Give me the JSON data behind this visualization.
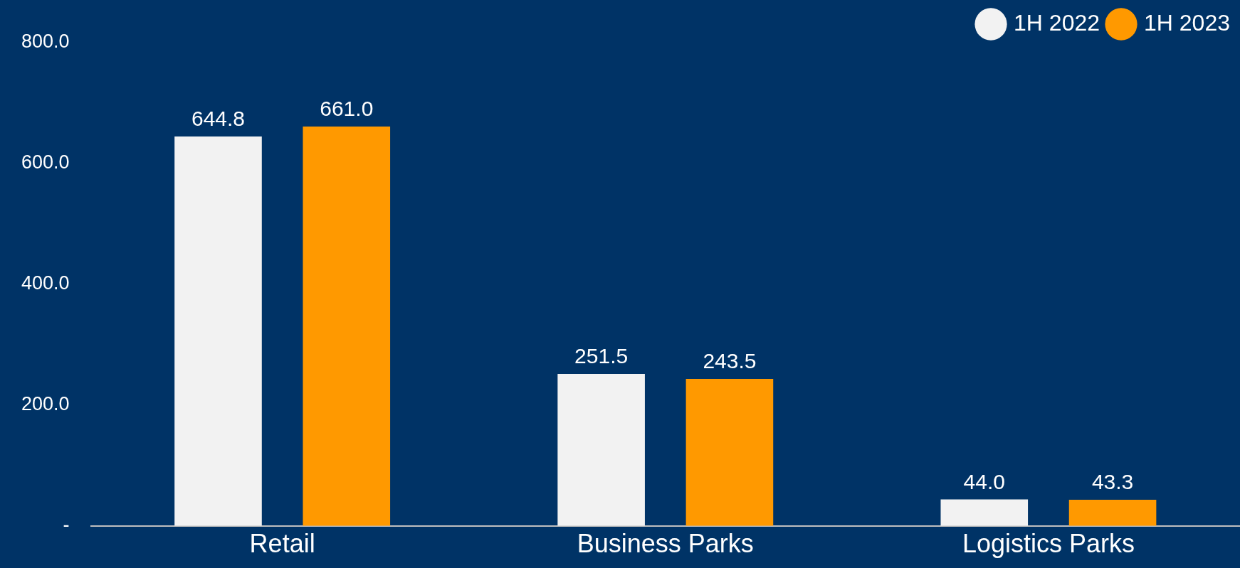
{
  "chart_data": {
    "type": "bar",
    "categories": [
      "Retail",
      "Business Parks",
      "Logistics Parks"
    ],
    "series": [
      {
        "name": "1H 2022",
        "color": "#f2f2f2",
        "values": [
          644.8,
          251.5,
          44.0
        ],
        "value_labels": [
          "644.8",
          "251.5",
          "44.0"
        ]
      },
      {
        "name": "1H 2023",
        "color": "#ff9900",
        "values": [
          661.0,
          243.5,
          43.3
        ],
        "value_labels": [
          "661.0",
          "243.5",
          "43.3"
        ]
      }
    ],
    "ylim": [
      0,
      800
    ],
    "yticks": [
      {
        "value": 0,
        "label": "-"
      },
      {
        "value": 200,
        "label": "200.0"
      },
      {
        "value": 400,
        "label": "400.0"
      },
      {
        "value": 600,
        "label": "600.0"
      },
      {
        "value": 800,
        "label": "800.0"
      }
    ],
    "grid": false,
    "legend": "top right"
  }
}
